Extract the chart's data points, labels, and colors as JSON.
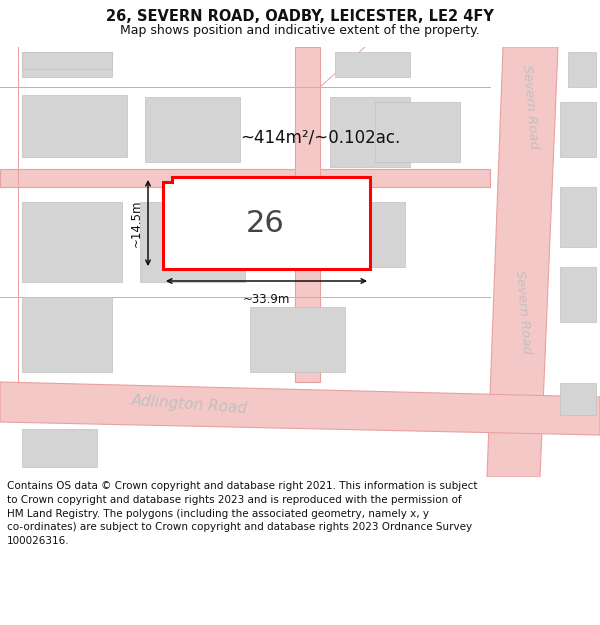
{
  "title": "26, SEVERN ROAD, OADBY, LEICESTER, LE2 4FY",
  "subtitle": "Map shows position and indicative extent of the property.",
  "footer_line1": "Contains OS data © Crown copyright and database right 2021. This information is subject",
  "footer_line2": "to Crown copyright and database rights 2023 and is reproduced with the permission of",
  "footer_line3": "HM Land Registry. The polygons (including the associated geometry, namely x, y",
  "footer_line4": "co-ordinates) are subject to Crown copyright and database rights 2023 Ordnance Survey",
  "footer_line5": "100026316.",
  "bg_color": "#ffffff",
  "map_bg": "#f0f0f0",
  "road_fill": "#f5c8c8",
  "road_line": "#e8a0a0",
  "building_fill": "#d4d4d4",
  "building_edge": "#c0c0c0",
  "highlight_fill": "#ffffff",
  "highlight_edge": "#ff0000",
  "highlight_lw": 2.2,
  "road_label_color": "#c0c0c0",
  "dim_color": "#111111",
  "area_text": "~414m²/~0.102ac.",
  "number_text": "26",
  "width_label": "~33.9m",
  "height_label": "~14.5m",
  "severn_road_label": "Severn Road",
  "adlington_road_label": "Adlington Road",
  "title_fontsize": 10.5,
  "subtitle_fontsize": 9,
  "footer_fontsize": 7.5
}
